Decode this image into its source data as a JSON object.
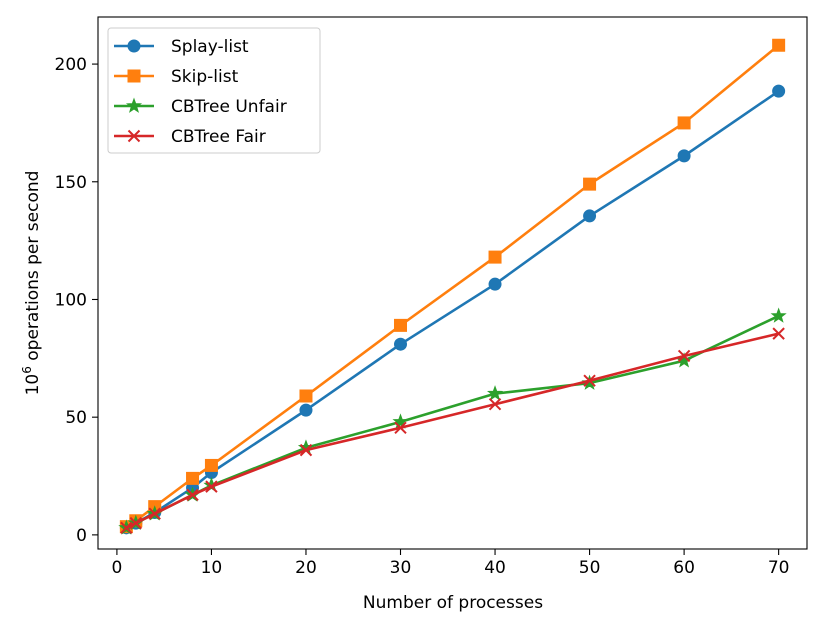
{
  "chart_data": {
    "type": "line",
    "xlabel": "Number of processes",
    "ylabel_base": "10",
    "ylabel_exp": "6",
    "ylabel_rest": " operations per second",
    "xlim": [
      -2,
      73
    ],
    "ylim": [
      -6,
      220
    ],
    "x_ticks": [
      0,
      10,
      20,
      30,
      40,
      50,
      60,
      70
    ],
    "y_ticks": [
      0,
      50,
      100,
      150,
      200
    ],
    "x_tick_labels": [
      "0",
      "10",
      "20",
      "30",
      "40",
      "50",
      "60",
      "70"
    ],
    "y_tick_labels": [
      "0",
      "50",
      "100",
      "150",
      "200"
    ],
    "grid": false,
    "legend_position": "top-left",
    "x": [
      1,
      2,
      4,
      8,
      10,
      20,
      30,
      40,
      50,
      60,
      70
    ],
    "series": [
      {
        "name": "Splay-list",
        "color": "#1f77b4",
        "marker": "circle",
        "values": [
          3,
          5,
          9.5,
          20,
          26.5,
          53,
          81,
          106.5,
          135.5,
          161,
          188.5
        ]
      },
      {
        "name": "Skip-list",
        "color": "#ff7f0e",
        "marker": "square",
        "values": [
          3.5,
          6,
          12,
          24,
          29.5,
          59,
          89,
          118,
          149,
          175,
          208
        ]
      },
      {
        "name": "CBTree Unfair",
        "color": "#2ca02c",
        "marker": "star",
        "values": [
          3,
          5,
          9,
          17,
          21,
          37,
          48,
          60,
          64.5,
          74,
          93
        ]
      },
      {
        "name": "CBTree Fair",
        "color": "#d62728",
        "marker": "x",
        "values": [
          3,
          5,
          9,
          17,
          20.5,
          36,
          45.5,
          55.5,
          65.5,
          76,
          85.5
        ]
      }
    ]
  }
}
